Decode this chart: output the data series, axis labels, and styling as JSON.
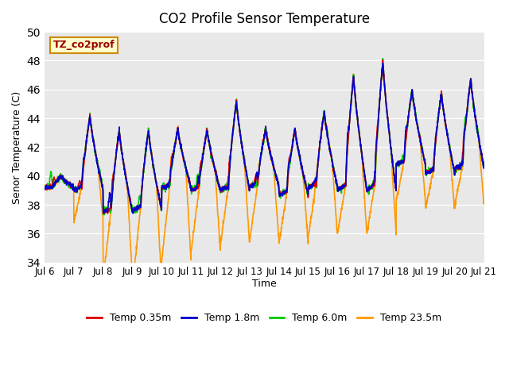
{
  "title": "CO2 Profile Sensor Temperature",
  "ylabel": "Senor Temperature (C)",
  "xlabel": "Time",
  "annotation_text": "TZ_co2prof",
  "annotation_color": "#990000",
  "annotation_bg": "#ffffcc",
  "annotation_border": "#cc8800",
  "ylim": [
    34,
    50
  ],
  "yticks": [
    34,
    36,
    38,
    40,
    42,
    44,
    46,
    48,
    50
  ],
  "xtick_labels": [
    "Jul 6",
    "Jul 7",
    "Jul 8",
    "Jul 9",
    "Jul 10",
    "Jul 11",
    "Jul 12",
    "Jul 13",
    "Jul 14",
    "Jul 15",
    "Jul 16",
    "Jul 17",
    "Jul 18",
    "Jul 19",
    "Jul 20",
    "Jul 21"
  ],
  "colors": {
    "temp035": "#dd0000",
    "temp18": "#0000cc",
    "temp60": "#00cc00",
    "temp235": "#ff9900"
  },
  "legend_labels": [
    "Temp 0.35m",
    "Temp 1.8m",
    "Temp 6.0m",
    "Temp 23.5m"
  ],
  "bg_color": "#e8e8e8",
  "line_width": 1.2,
  "n_days": 15,
  "points_per_day": 144
}
